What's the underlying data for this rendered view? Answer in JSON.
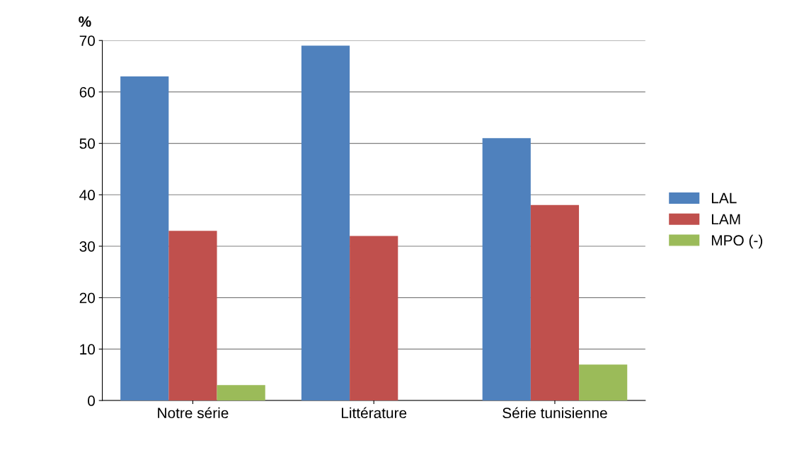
{
  "chart_data": {
    "type": "bar",
    "ylabel": "%",
    "categories": [
      "Notre série",
      "Littérature",
      "Série tunisienne"
    ],
    "series": [
      {
        "name": "LAL",
        "color": "#4f81bd",
        "values": [
          63,
          69,
          51
        ]
      },
      {
        "name": "LAM",
        "color": "#c0504d",
        "values": [
          33,
          32,
          38
        ]
      },
      {
        "name": "MPO (-)",
        "color": "#9bbb59",
        "values": [
          3,
          0,
          7
        ]
      }
    ],
    "ylim": [
      0,
      70
    ],
    "yticks": [
      0,
      10,
      20,
      30,
      40,
      50,
      60,
      70
    ],
    "grid": "y",
    "legend": "right"
  }
}
